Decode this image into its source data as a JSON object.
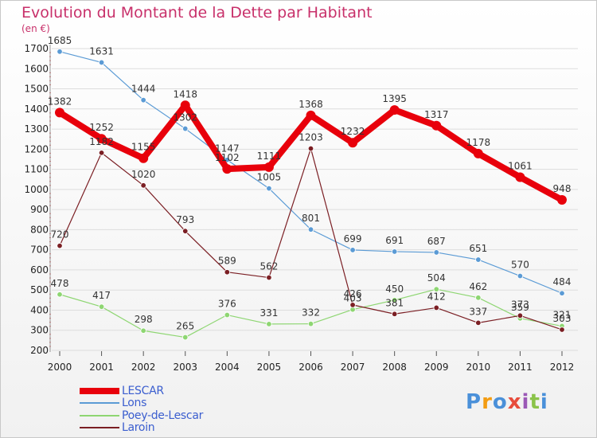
{
  "title": "Evolution du Montant de la Dette par Habitant",
  "unit": "(en €)",
  "logo_text": "Proxiti",
  "colors": {
    "title": "#c8306a",
    "legend_text": "#3b5ecf",
    "grid": "#dddddd"
  },
  "chart_data": {
    "type": "line",
    "title": "Evolution du Montant de la Dette par Habitant",
    "ylabel": "(en €)",
    "xlabel": "",
    "x": [
      "2000",
      "2001",
      "2002",
      "2003",
      "2004",
      "2005",
      "2006",
      "2007",
      "2008",
      "2009",
      "2010",
      "2011",
      "2012"
    ],
    "ylim": [
      200,
      1700
    ],
    "yticks": [
      200,
      300,
      400,
      500,
      600,
      700,
      800,
      900,
      1000,
      1100,
      1200,
      1300,
      1400,
      1500,
      1600,
      1700
    ],
    "grid": "horizontal",
    "legend_position": "bottom-left",
    "series": [
      {
        "name": "LESCAR",
        "color": "#e8000b",
        "width": 8,
        "values": [
          1382,
          1252,
          1155,
          1418,
          1102,
          1111,
          1368,
          1232,
          1395,
          1317,
          1178,
          1061,
          948
        ]
      },
      {
        "name": "Lons",
        "color": "#5b9bd5",
        "width": 1.2,
        "values": [
          1685,
          1631,
          1444,
          1302,
          1147,
          1005,
          801,
          699,
          691,
          687,
          651,
          570,
          484
        ]
      },
      {
        "name": "Poey-de-Lescar",
        "color": "#8ed672",
        "width": 1.2,
        "values": [
          478,
          417,
          298,
          265,
          376,
          331,
          332,
          403,
          450,
          504,
          462,
          359,
          321
        ]
      },
      {
        "name": "Laroin",
        "color": "#7b1f24",
        "width": 1.2,
        "values": [
          720,
          1182,
          1020,
          793,
          589,
          562,
          1203,
          426,
          381,
          412,
          337,
          373,
          303
        ]
      }
    ]
  }
}
